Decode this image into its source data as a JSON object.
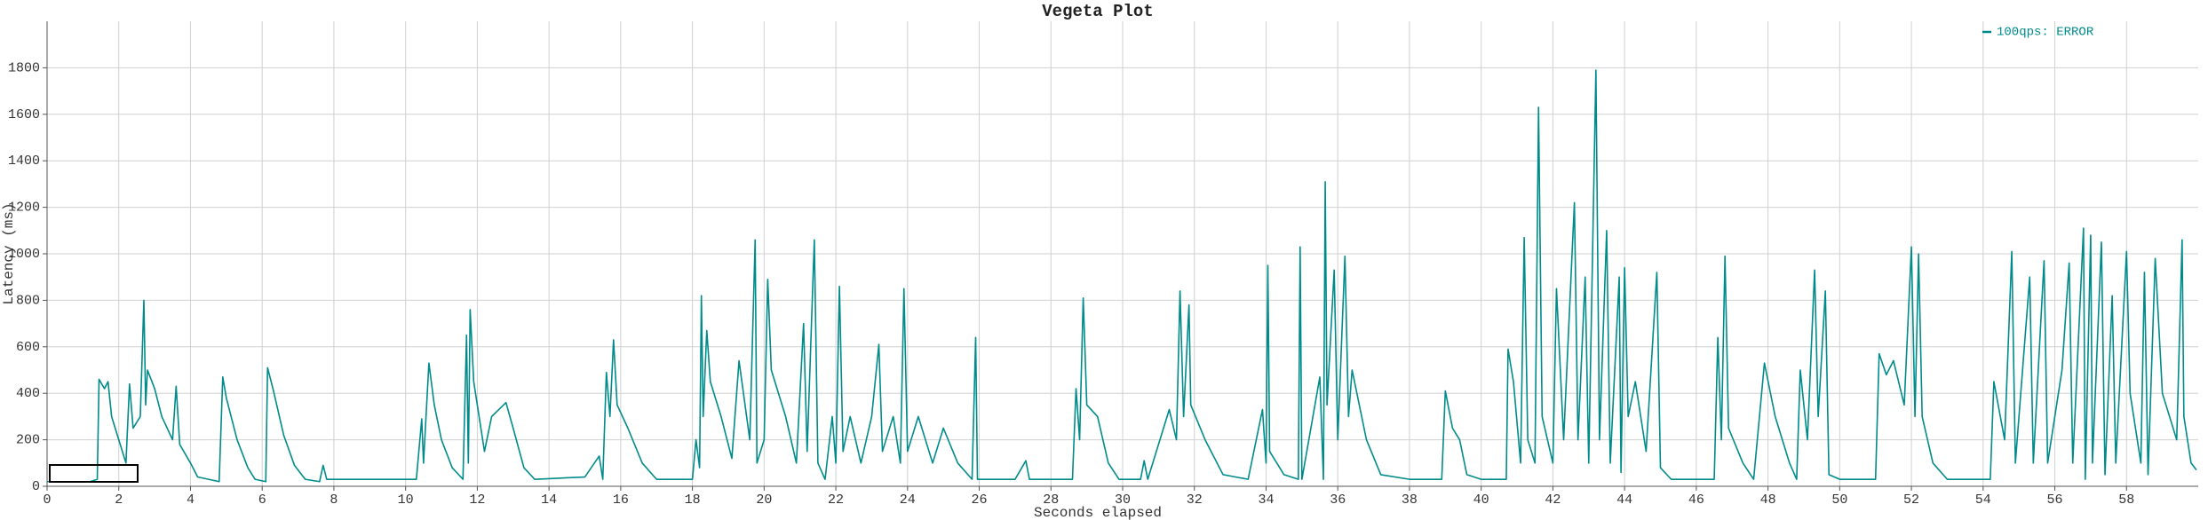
{
  "chart_data": {
    "type": "line",
    "title": "Vegeta Plot",
    "xlabel": "Seconds elapsed",
    "ylabel": "Latency (ms)",
    "xlim": [
      0,
      60
    ],
    "ylim": [
      0,
      2000
    ],
    "xticks": [
      0,
      2,
      4,
      6,
      8,
      10,
      12,
      14,
      16,
      18,
      20,
      22,
      24,
      26,
      28,
      30,
      32,
      34,
      36,
      38,
      40,
      42,
      44,
      46,
      48,
      50,
      52,
      54,
      56,
      58
    ],
    "yticks": [
      0,
      200,
      400,
      600,
      800,
      1000,
      1200,
      1400,
      1600,
      1800
    ],
    "grid": true,
    "legend": "upper right",
    "x": [
      0,
      1.2,
      1.4,
      1.45,
      1.6,
      1.7,
      1.8,
      2.0,
      2.2,
      2.3,
      2.4,
      2.6,
      2.7,
      2.75,
      2.8,
      3.0,
      3.2,
      3.5,
      3.6,
      3.7,
      4.0,
      4.2,
      4.8,
      4.9,
      5.0,
      5.3,
      5.6,
      5.8,
      6.1,
      6.15,
      6.3,
      6.6,
      6.9,
      7.2,
      7.6,
      7.7,
      7.8,
      9.0,
      10.3,
      10.45,
      10.5,
      10.65,
      10.8,
      11.0,
      11.3,
      11.6,
      11.7,
      11.75,
      11.8,
      11.9,
      12.1,
      12.2,
      12.4,
      12.8,
      13.0,
      13.3,
      13.6,
      15.0,
      15.4,
      15.5,
      15.6,
      15.7,
      15.8,
      15.9,
      16.2,
      16.6,
      17.0,
      18.0,
      18.1,
      18.2,
      18.25,
      18.3,
      18.4,
      18.5,
      18.8,
      19.1,
      19.3,
      19.6,
      19.75,
      19.8,
      20.0,
      20.1,
      20.2,
      20.6,
      20.9,
      21.1,
      21.2,
      21.4,
      21.5,
      21.7,
      21.9,
      22.0,
      22.1,
      22.2,
      22.4,
      22.7,
      23.0,
      23.2,
      23.3,
      23.6,
      23.8,
      23.9,
      24.0,
      24.3,
      24.7,
      25.0,
      25.4,
      25.8,
      25.9,
      25.95,
      27.0,
      27.3,
      27.4,
      28.6,
      28.7,
      28.8,
      28.9,
      29.0,
      29.3,
      29.6,
      29.9,
      30.5,
      30.6,
      30.7,
      31.3,
      31.5,
      31.6,
      31.7,
      31.85,
      31.9,
      32.3,
      32.8,
      33.5,
      33.9,
      34.0,
      34.05,
      34.1,
      34.5,
      34.9,
      34.95,
      35.0,
      35.5,
      35.6,
      35.65,
      35.7,
      35.9,
      36.0,
      36.2,
      36.3,
      36.4,
      36.8,
      37.2,
      38.0,
      38.9,
      39.0,
      39.2,
      39.4,
      39.6,
      40.0,
      40.7,
      40.75,
      40.9,
      41.1,
      41.2,
      41.3,
      41.5,
      41.6,
      41.7,
      42.0,
      42.1,
      42.3,
      42.6,
      42.7,
      42.9,
      43.0,
      43.2,
      43.3,
      43.5,
      43.6,
      43.85,
      43.9,
      44.0,
      44.1,
      44.3,
      44.6,
      44.9,
      45.0,
      45.3,
      46.5,
      46.6,
      46.7,
      46.8,
      46.9,
      47.3,
      47.6,
      47.9,
      48.2,
      48.6,
      48.8,
      48.9,
      49.1,
      49.3,
      49.4,
      49.6,
      49.7,
      50.0,
      51.0,
      51.1,
      51.3,
      51.5,
      51.8,
      52.0,
      52.1,
      52.2,
      52.3,
      52.6,
      53.0,
      54.2,
      54.3,
      54.6,
      54.8,
      54.9,
      55.3,
      55.4,
      55.7,
      55.8,
      56.2,
      56.4,
      56.5,
      56.8,
      56.85,
      57.0,
      57.05,
      57.3,
      57.4,
      57.6,
      57.7,
      58.0,
      58.1,
      58.4,
      58.5,
      58.6,
      58.8,
      59.0,
      59.4,
      59.55,
      59.6,
      59.8,
      59.95
    ],
    "series": [
      {
        "name": "100qps: ERROR",
        "color": "#008b8b",
        "values": [
          20,
          20,
          30,
          460,
          420,
          450,
          300,
          200,
          100,
          440,
          250,
          300,
          800,
          350,
          500,
          420,
          300,
          200,
          430,
          180,
          100,
          40,
          20,
          470,
          380,
          200,
          80,
          30,
          20,
          510,
          420,
          220,
          90,
          30,
          20,
          90,
          30,
          30,
          30,
          290,
          100,
          530,
          350,
          200,
          80,
          30,
          650,
          100,
          760,
          450,
          250,
          150,
          300,
          360,
          250,
          80,
          30,
          40,
          130,
          30,
          490,
          300,
          630,
          350,
          250,
          100,
          30,
          30,
          200,
          80,
          820,
          300,
          670,
          450,
          300,
          120,
          540,
          200,
          1060,
          100,
          200,
          890,
          500,
          300,
          100,
          700,
          150,
          1060,
          100,
          30,
          300,
          100,
          860,
          150,
          300,
          100,
          300,
          610,
          150,
          300,
          100,
          850,
          150,
          300,
          100,
          250,
          100,
          30,
          640,
          30,
          30,
          110,
          30,
          30,
          420,
          200,
          810,
          350,
          300,
          100,
          30,
          30,
          110,
          30,
          330,
          200,
          840,
          300,
          780,
          350,
          200,
          50,
          30,
          330,
          100,
          950,
          150,
          50,
          30,
          1030,
          30,
          470,
          30,
          1310,
          350,
          930,
          200,
          990,
          300,
          500,
          200,
          50,
          30,
          30,
          410,
          250,
          200,
          50,
          30,
          30,
          590,
          450,
          100,
          1070,
          200,
          100,
          1630,
          300,
          100,
          850,
          200,
          1220,
          200,
          900,
          100,
          1790,
          200,
          1100,
          100,
          900,
          60,
          940,
          300,
          450,
          150,
          920,
          80,
          30,
          30,
          640,
          200,
          990,
          250,
          100,
          30,
          530,
          300,
          100,
          30,
          500,
          200,
          930,
          300,
          840,
          50,
          30,
          30,
          570,
          480,
          540,
          350,
          1030,
          300,
          1000,
          300,
          100,
          30,
          30,
          450,
          200,
          1010,
          100,
          900,
          100,
          970,
          100,
          500,
          960,
          100,
          1110,
          30,
          1080,
          100,
          1050,
          50,
          820,
          100,
          1010,
          400,
          100,
          920,
          50,
          980,
          400,
          200,
          1060,
          300,
          100,
          70
        ]
      }
    ]
  }
}
